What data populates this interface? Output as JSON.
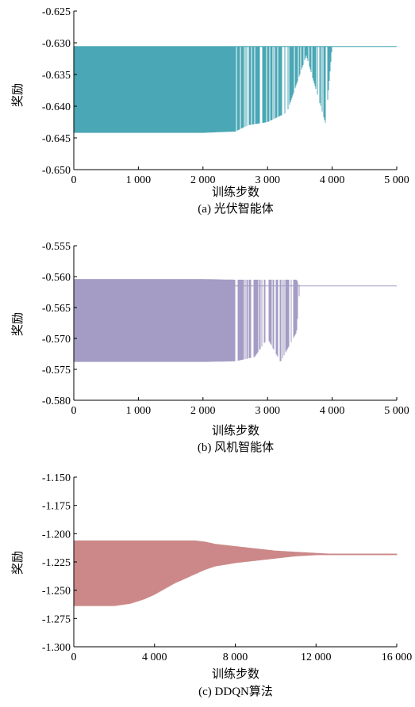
{
  "figure": {
    "background": "#ffffff"
  },
  "chart_data": [
    {
      "type": "line",
      "caption": "(a) 光伏智能体",
      "xlabel": "训练步数",
      "ylabel": "奖励",
      "xlim": [
        0,
        5000
      ],
      "ylim": [
        -0.65,
        -0.625
      ],
      "xticks": [
        0,
        1000,
        2000,
        3000,
        4000,
        5000
      ],
      "xtick_labels": [
        "0",
        "1 000",
        "2 000",
        "3 000",
        "4 000",
        "5 000"
      ],
      "yticks": [
        -0.65,
        -0.645,
        -0.64,
        -0.635,
        -0.63,
        -0.625
      ],
      "ytick_labels": [
        "-0.650",
        "-0.645",
        "-0.640",
        "-0.635",
        "-0.630",
        "-0.625"
      ],
      "color": "#4aa7b5",
      "series": [
        {
          "x": [
            0,
            500,
            1000,
            1500,
            2000,
            2500,
            2700,
            3000,
            3300,
            3450,
            3600,
            3900,
            4000,
            4500,
            5000
          ],
          "upper": [
            -0.6306,
            -0.6306,
            -0.6306,
            -0.6306,
            -0.6306,
            -0.6306,
            -0.6306,
            -0.6306,
            -0.6306,
            -0.6306,
            -0.6306,
            -0.6306,
            -0.6306,
            -0.6306,
            -0.6306
          ],
          "lower": [
            -0.6442,
            -0.6442,
            -0.6442,
            -0.6442,
            -0.6442,
            -0.644,
            -0.643,
            -0.6425,
            -0.641,
            -0.6365,
            -0.632,
            -0.6428,
            -0.6306,
            -0.6306,
            -0.6306
          ],
          "final": -0.6306
        }
      ]
    },
    {
      "type": "line",
      "caption": "(b) 风机智能体",
      "xlabel": "训练步数",
      "ylabel": "奖励",
      "xlim": [
        0,
        5000
      ],
      "ylim": [
        -0.58,
        -0.555
      ],
      "xticks": [
        0,
        1000,
        2000,
        3000,
        4000,
        5000
      ],
      "xtick_labels": [
        "0",
        "1 000",
        "2 000",
        "3 000",
        "4 000",
        "5 000"
      ],
      "yticks": [
        -0.58,
        -0.575,
        -0.57,
        -0.565,
        -0.56,
        -0.555
      ],
      "ytick_labels": [
        "-0.580",
        "-0.575",
        "-0.570",
        "-0.565",
        "-0.560",
        "-0.555"
      ],
      "color": "#a49cc4",
      "series": [
        {
          "x": [
            0,
            500,
            1000,
            1500,
            2000,
            2500,
            2800,
            3000,
            3200,
            3450,
            3500,
            4000,
            5000
          ],
          "upper": [
            -0.5604,
            -0.5604,
            -0.5604,
            -0.5604,
            -0.5604,
            -0.5605,
            -0.5605,
            -0.5605,
            -0.5605,
            -0.5605,
            -0.5615,
            -0.5615,
            -0.5615
          ],
          "lower": [
            -0.5738,
            -0.5738,
            -0.5738,
            -0.5738,
            -0.5738,
            -0.5737,
            -0.573,
            -0.57,
            -0.5738,
            -0.569,
            -0.5615,
            -0.5615,
            -0.5615
          ],
          "final": -0.5615
        }
      ]
    },
    {
      "type": "line",
      "caption": "(c) DDQN算法",
      "xlabel": "训练步数",
      "ylabel": "奖励",
      "xlim": [
        0,
        16000
      ],
      "ylim": [
        -1.3,
        -1.15
      ],
      "xticks": [
        0,
        4000,
        8000,
        12000,
        16000
      ],
      "xtick_labels": [
        "0",
        "4 000",
        "8 000",
        "12 000",
        "16 000"
      ],
      "yticks": [
        -1.3,
        -1.275,
        -1.25,
        -1.225,
        -1.2,
        -1.175,
        -1.15
      ],
      "ytick_labels": [
        "-1.300",
        "-1.275",
        "-1.250",
        "-1.225",
        "-1.200",
        "-1.175",
        "-1.150"
      ],
      "color": "#cc8888",
      "series": [
        {
          "x": [
            0,
            1000,
            2000,
            2800,
            3500,
            4000,
            4500,
            5000,
            5500,
            6000,
            6500,
            7000,
            8000,
            9000,
            10000,
            11000,
            12000,
            13000,
            14000,
            16000
          ],
          "upper": [
            -1.206,
            -1.206,
            -1.206,
            -1.206,
            -1.206,
            -1.206,
            -1.206,
            -1.206,
            -1.206,
            -1.206,
            -1.207,
            -1.209,
            -1.211,
            -1.213,
            -1.215,
            -1.216,
            -1.217,
            -1.218,
            -1.218,
            -1.218
          ],
          "lower": [
            -1.264,
            -1.264,
            -1.264,
            -1.262,
            -1.258,
            -1.254,
            -1.249,
            -1.244,
            -1.24,
            -1.236,
            -1.232,
            -1.229,
            -1.226,
            -1.224,
            -1.222,
            -1.22,
            -1.219,
            -1.219,
            -1.219,
            -1.219
          ],
          "final": -1.218
        }
      ]
    }
  ]
}
